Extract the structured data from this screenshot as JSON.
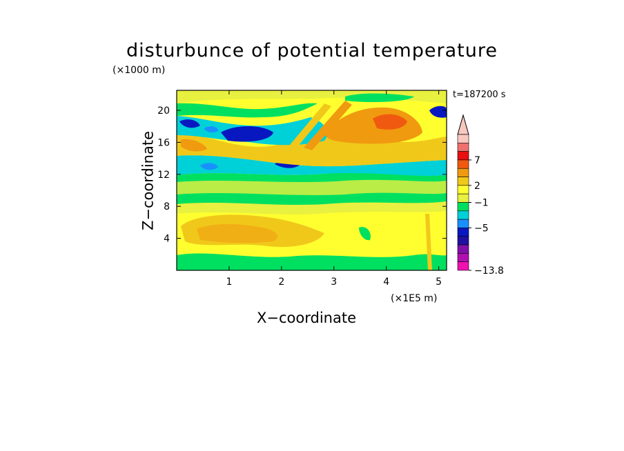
{
  "chart_data": {
    "type": "heatmap",
    "title": "disturbunce of potential temperature",
    "time_label": "t=187200 s",
    "xlabel": "X−coordinate",
    "ylabel": "Z−coordinate",
    "x_unit": "(×1E5 m)",
    "y_unit": "(×1000 m)",
    "xlim": [
      0,
      5.15
    ],
    "ylim": [
      0,
      22.5
    ],
    "x_ticks": [
      "1",
      "2",
      "3",
      "4",
      "5"
    ],
    "y_ticks": [
      "4",
      "8",
      "12",
      "16",
      "20"
    ],
    "colorbar": {
      "min_label": "−13.8",
      "labels": [
        "7",
        "2",
        "−1",
        "−5",
        "−13.8"
      ],
      "colors": [
        "#f8c8c0",
        "#f07070",
        "#e81010",
        "#f05a10",
        "#f09a10",
        "#f0c81a",
        "#ffff30",
        "#e8f040",
        "#00e060",
        "#00d0d8",
        "#1890ff",
        "#0818c0",
        "#2010a0",
        "#8010a8",
        "#b010b0",
        "#f010b0"
      ]
    },
    "regions": [
      {
        "x": [
          0.0,
          5.15
        ],
        "y": [
          0,
          22.5
        ],
        "level": "0 to 1"
      },
      {
        "x": [
          0.0,
          5.15
        ],
        "y": [
          13.6,
          14.6
        ],
        "level": "-1 to 0"
      },
      {
        "x": [
          0.0,
          5.15
        ],
        "y": [
          8.6,
          12.4
        ],
        "level": "0 to 1"
      },
      {
        "x": [
          0.2,
          1.8
        ],
        "y": [
          16.6,
          18.0
        ],
        "level": "-5 to -3"
      },
      {
        "x": [
          2.2,
          3.4
        ],
        "y": [
          12.8,
          14.0
        ],
        "level": "-5 to -3"
      },
      {
        "x": [
          3.6,
          4.4
        ],
        "y": [
          17.4,
          20.2
        ],
        "level": "3 to 5"
      },
      {
        "x": [
          0.1,
          2.6
        ],
        "y": [
          3.0,
          6.8
        ],
        "level": "2 to 3"
      },
      {
        "x": [
          4.9,
          5.15
        ],
        "y": [
          19.2,
          20.4
        ],
        "level": "-5 to -3"
      }
    ]
  }
}
